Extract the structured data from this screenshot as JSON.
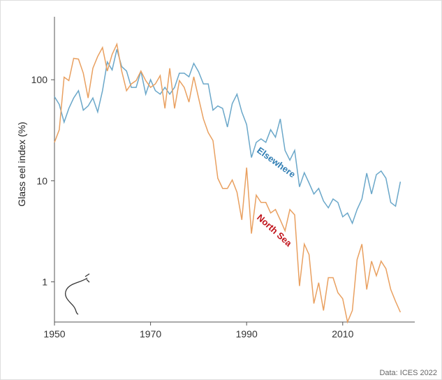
{
  "chart_data": {
    "type": "line",
    "y_label": "Glass eel index (%)",
    "source": "Data: ICES 2022",
    "log_y": true,
    "x": [
      1950,
      1951,
      1952,
      1953,
      1954,
      1955,
      1956,
      1957,
      1958,
      1959,
      1960,
      1961,
      1962,
      1963,
      1964,
      1965,
      1966,
      1967,
      1968,
      1969,
      1970,
      1971,
      1972,
      1973,
      1974,
      1975,
      1976,
      1977,
      1978,
      1979,
      1980,
      1981,
      1982,
      1983,
      1984,
      1985,
      1986,
      1987,
      1988,
      1989,
      1990,
      1991,
      1992,
      1993,
      1994,
      1995,
      1996,
      1997,
      1998,
      1999,
      2000,
      2001,
      2002,
      2003,
      2004,
      2005,
      2006,
      2007,
      2008,
      2009,
      2010,
      2011,
      2012,
      2013,
      2014,
      2015,
      2016,
      2017,
      2018,
      2019,
      2020,
      2021,
      2022
    ],
    "series": [
      {
        "name": "Elsewhere",
        "color": "#6aa7c9",
        "values": [
          68,
          57,
          38,
          52,
          66,
          78,
          50,
          55,
          66,
          48,
          78,
          150,
          125,
          200,
          135,
          122,
          84,
          84,
          122,
          72,
          100,
          78,
          72,
          84,
          72,
          84,
          116,
          116,
          107,
          145,
          120,
          91,
          91,
          50,
          55,
          52,
          34,
          58,
          72,
          48,
          36,
          17,
          24,
          26,
          24,
          32,
          27,
          41,
          20,
          16,
          20,
          8.7,
          12,
          9.5,
          7.4,
          8.4,
          6.3,
          5.4,
          6.6,
          6.1,
          4.4,
          4.8,
          3.8,
          5.2,
          6.6,
          11.9,
          7.4,
          11.5,
          12.5,
          10.6,
          6.1,
          5.6,
          9.8
        ]
      },
      {
        "name": "North Sea",
        "color": "#e9a060",
        "values": [
          24,
          32,
          106,
          98,
          163,
          160,
          116,
          66,
          130,
          170,
          208,
          122,
          178,
          225,
          122,
          78,
          91,
          98,
          122,
          98,
          84,
          91,
          110,
          52,
          130,
          52,
          98,
          84,
          60,
          107,
          66,
          41,
          30,
          25,
          10.6,
          8.4,
          8.4,
          10.2,
          7.7,
          4.1,
          13.5,
          3.0,
          7.2,
          6.1,
          6.1,
          4.8,
          5.2,
          4.1,
          3.2,
          5.2,
          4.6,
          0.91,
          2.36,
          1.86,
          0.61,
          0.98,
          0.52,
          1.1,
          1.1,
          0.78,
          0.68,
          0.4,
          0.52,
          1.66,
          2.36,
          0.84,
          1.6,
          1.15,
          1.6,
          1.35,
          0.84,
          0.64,
          0.5
        ]
      }
    ],
    "xlim": [
      1950,
      2025
    ],
    "xticks": [
      1950,
      1970,
      1990,
      2010
    ],
    "ylim": [
      0.4,
      420
    ],
    "yticks": [
      1,
      10,
      100
    ]
  }
}
